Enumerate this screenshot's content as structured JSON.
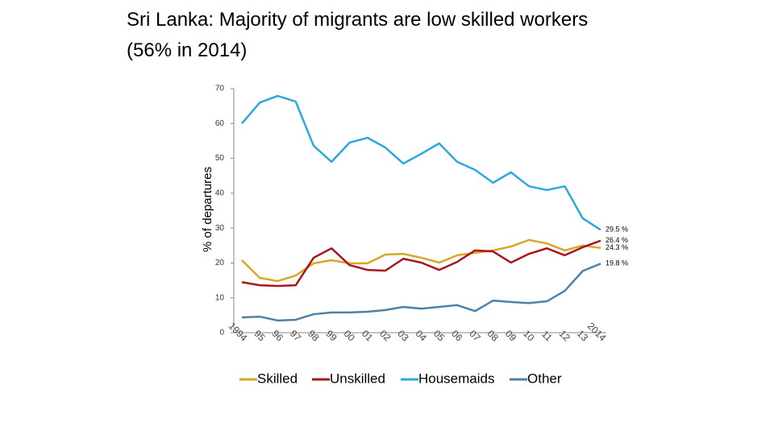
{
  "chart_data": {
    "type": "line",
    "title": "Sri Lanka: Majority of migrants are low skilled workers (56% in 2014)",
    "y_label": "% of departures",
    "categories": [
      "1994",
      "95",
      "96",
      "97",
      "98",
      "99",
      "00",
      "01",
      "02",
      "03",
      "04",
      "05",
      "06",
      "07",
      "08",
      "09",
      "10",
      "11",
      "12",
      "13",
      "2014"
    ],
    "ylim": [
      0,
      70
    ],
    "yticks": [
      0,
      10,
      20,
      30,
      40,
      50,
      60,
      70
    ],
    "legend": "bottom",
    "series": [
      {
        "name": "Skilled",
        "color": "#d4a828",
        "values": [
          20.8,
          15.7,
          14.8,
          16.4,
          19.9,
          20.8,
          19.9,
          19.9,
          22.4,
          22.6,
          21.5,
          20.1,
          22.2,
          22.9,
          23.6,
          24.7,
          26.6,
          25.6,
          23.6,
          25.0,
          24.3
        ],
        "value_labels": [
          null,
          null,
          null,
          null,
          null,
          null,
          null,
          null,
          null,
          null,
          null,
          null,
          null,
          null,
          null,
          null,
          null,
          null,
          null,
          null,
          "24.3 %"
        ]
      },
      {
        "name": "Unskilled",
        "color": "#a8161a",
        "values": [
          14.5,
          13.6,
          13.4,
          13.6,
          21.5,
          24.2,
          19.4,
          18.0,
          17.8,
          21.2,
          20.1,
          18.0,
          20.3,
          23.6,
          23.3,
          20.1,
          22.6,
          24.2,
          22.2,
          24.5,
          26.4
        ],
        "value_labels": [
          null,
          null,
          null,
          null,
          null,
          null,
          null,
          null,
          null,
          null,
          null,
          null,
          null,
          null,
          null,
          null,
          null,
          null,
          null,
          null,
          "26.4 %"
        ]
      },
      {
        "name": "Housemaids",
        "color": "#2aa8e0",
        "values": [
          60.0,
          66.0,
          67.9,
          66.3,
          53.6,
          49.0,
          54.5,
          55.9,
          53.1,
          48.5,
          51.3,
          54.3,
          49.0,
          46.7,
          43.0,
          46.0,
          42.0,
          40.9,
          42.0,
          32.8,
          29.5
        ],
        "value_labels": [
          null,
          null,
          null,
          null,
          null,
          null,
          null,
          null,
          null,
          null,
          null,
          null,
          null,
          null,
          null,
          null,
          null,
          null,
          null,
          null,
          "29.5 %"
        ]
      },
      {
        "name": "Other",
        "color": "#4f81a8",
        "values": [
          4.4,
          4.6,
          3.5,
          3.7,
          5.3,
          5.8,
          5.8,
          6.0,
          6.5,
          7.4,
          6.9,
          7.4,
          7.9,
          6.2,
          9.2,
          8.8,
          8.5,
          9.0,
          12.0,
          17.7,
          19.8
        ],
        "value_labels": [
          null,
          null,
          null,
          null,
          null,
          null,
          null,
          null,
          null,
          null,
          null,
          null,
          null,
          null,
          null,
          null,
          null,
          null,
          null,
          null,
          "19.8 %"
        ]
      }
    ]
  }
}
